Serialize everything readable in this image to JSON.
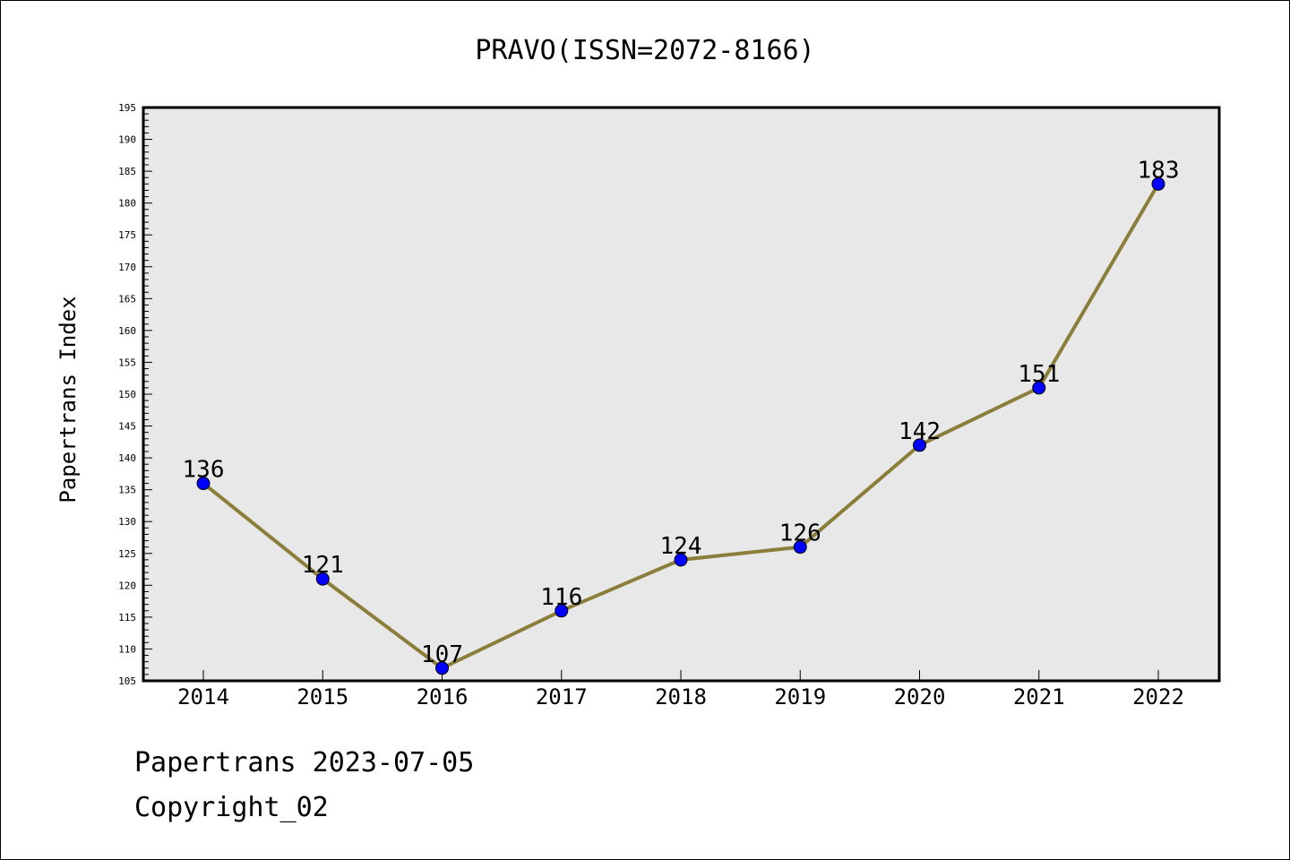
{
  "chart_data": {
    "type": "line",
    "title": "PRAVO(ISSN=2072-8166)",
    "xlabel": "",
    "ylabel": "Papertrans Index",
    "categories": [
      "2014",
      "2015",
      "2016",
      "2017",
      "2018",
      "2019",
      "2020",
      "2021",
      "2022"
    ],
    "series": [
      {
        "values": [
          136,
          121,
          107,
          116,
          124,
          126,
          142,
          151,
          183
        ]
      }
    ],
    "ylim": [
      105,
      195
    ],
    "y_major_step": 5,
    "y_minor_step": 1,
    "grid": false,
    "legend": "none",
    "data_labels": true,
    "colors": {
      "line": "#8b7d3a",
      "marker": "#0000ff",
      "plot_background": "#e8e8e8"
    }
  },
  "footer": {
    "line1": "Papertrans 2023-07-05",
    "line2": "Copyright_02"
  }
}
